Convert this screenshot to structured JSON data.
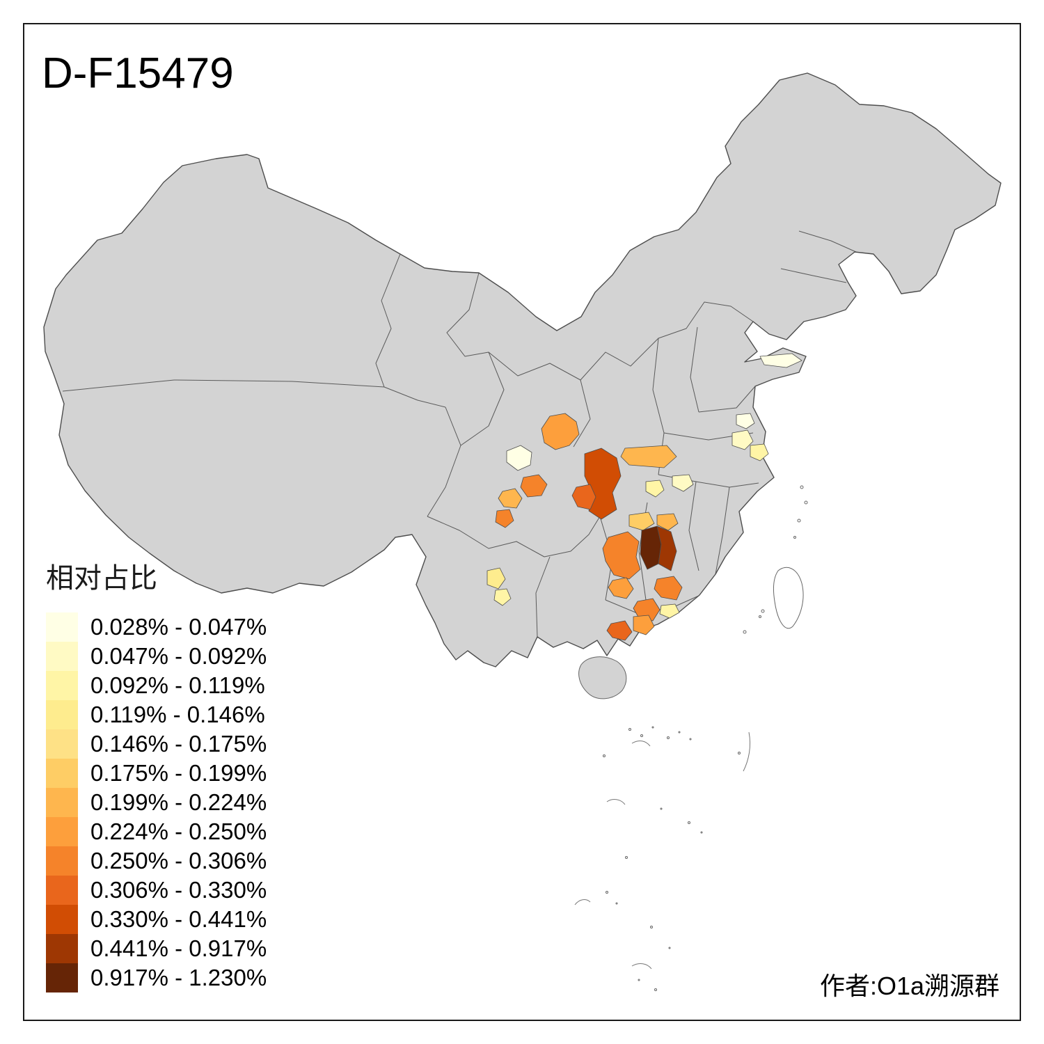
{
  "title": "D-F15479",
  "attribution": "作者:O1a溯源群",
  "legend": {
    "title": "相对占比",
    "items": [
      {
        "label": "0.028% - 0.047%",
        "color": "#FFFFE5"
      },
      {
        "label": "0.047% - 0.092%",
        "color": "#FFFAC4"
      },
      {
        "label": "0.092% - 0.119%",
        "color": "#FFF5A6"
      },
      {
        "label": "0.119% - 0.146%",
        "color": "#FEEC8E"
      },
      {
        "label": "0.146% - 0.175%",
        "color": "#FEE186"
      },
      {
        "label": "0.175% - 0.199%",
        "color": "#FECD65"
      },
      {
        "label": "0.199% - 0.224%",
        "color": "#FEB64E"
      },
      {
        "label": "0.224% - 0.250%",
        "color": "#FD9F3C"
      },
      {
        "label": "0.250% - 0.306%",
        "color": "#F5832A"
      },
      {
        "label": "0.306% - 0.330%",
        "color": "#E9661C"
      },
      {
        "label": "0.330% - 0.441%",
        "color": "#D14D04"
      },
      {
        "label": "0.441% - 0.917%",
        "color": "#9E3703"
      },
      {
        "label": "0.917% - 1.230%",
        "color": "#662506"
      }
    ]
  },
  "map": {
    "base_fill": "#D3D3D3",
    "island_fill": "#FFFFFF",
    "border_color": "#4D4D4D"
  }
}
